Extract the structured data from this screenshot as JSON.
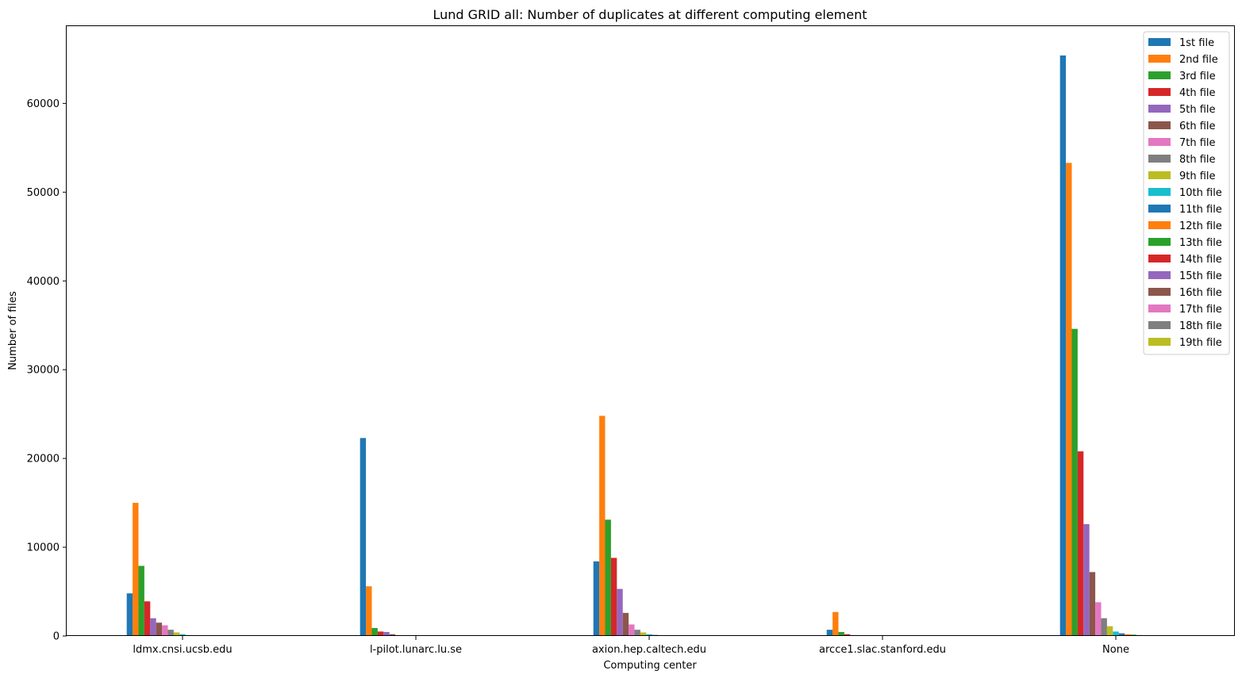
{
  "chart_data": {
    "type": "bar",
    "title": "Lund GRID all: Number of duplicates at different computing element",
    "xlabel": "Computing center",
    "ylabel": "Number of files",
    "categories": [
      "ldmx.cnsi.ucsb.edu",
      "l-pilot.lunarc.lu.se",
      "axion.hep.caltech.edu",
      "arcce1.slac.stanford.edu",
      "None"
    ],
    "ylim": [
      0,
      68700
    ],
    "yticks": [
      0,
      10000,
      20000,
      30000,
      40000,
      50000,
      60000
    ],
    "legend_position": "top-right",
    "grid": false,
    "series": [
      {
        "name": "1st file",
        "color": "#1f77b4",
        "values": [
          4800,
          22300,
          8400,
          700,
          65400
        ]
      },
      {
        "name": "2nd file",
        "color": "#ff7f0e",
        "values": [
          15000,
          5600,
          24800,
          2700,
          53300
        ]
      },
      {
        "name": "3rd file",
        "color": "#2ca02c",
        "values": [
          7900,
          900,
          13100,
          450,
          34600
        ]
      },
      {
        "name": "4th file",
        "color": "#d62728",
        "values": [
          3900,
          500,
          8800,
          200,
          20800
        ]
      },
      {
        "name": "5th file",
        "color": "#9467bd",
        "values": [
          2000,
          450,
          5300,
          100,
          12600
        ]
      },
      {
        "name": "6th file",
        "color": "#8c564b",
        "values": [
          1500,
          200,
          2600,
          80,
          7200
        ]
      },
      {
        "name": "7th file",
        "color": "#e377c2",
        "values": [
          1200,
          100,
          1300,
          50,
          3800
        ]
      },
      {
        "name": "8th file",
        "color": "#7f7f7f",
        "values": [
          700,
          80,
          700,
          40,
          2000
        ]
      },
      {
        "name": "9th file",
        "color": "#bcbd22",
        "values": [
          400,
          40,
          400,
          30,
          1100
        ]
      },
      {
        "name": "10th file",
        "color": "#17becf",
        "values": [
          200,
          30,
          200,
          20,
          500
        ]
      },
      {
        "name": "11th file",
        "color": "#1f77b4",
        "values": [
          100,
          20,
          120,
          10,
          300
        ]
      },
      {
        "name": "12th file",
        "color": "#ff7f0e",
        "values": [
          60,
          10,
          80,
          10,
          200
        ]
      },
      {
        "name": "13th file",
        "color": "#2ca02c",
        "values": [
          40,
          10,
          50,
          5,
          150
        ]
      },
      {
        "name": "14th file",
        "color": "#d62728",
        "values": [
          30,
          5,
          30,
          5,
          100
        ]
      },
      {
        "name": "15th file",
        "color": "#9467bd",
        "values": [
          20,
          5,
          20,
          5,
          80
        ]
      },
      {
        "name": "16th file",
        "color": "#8c564b",
        "values": [
          10,
          0,
          10,
          0,
          50
        ]
      },
      {
        "name": "17th file",
        "color": "#e377c2",
        "values": [
          10,
          0,
          10,
          0,
          30
        ]
      },
      {
        "name": "18th file",
        "color": "#7f7f7f",
        "values": [
          5,
          0,
          5,
          0,
          20
        ]
      },
      {
        "name": "19th file",
        "color": "#bcbd22",
        "values": [
          5,
          0,
          5,
          0,
          10
        ]
      }
    ]
  }
}
